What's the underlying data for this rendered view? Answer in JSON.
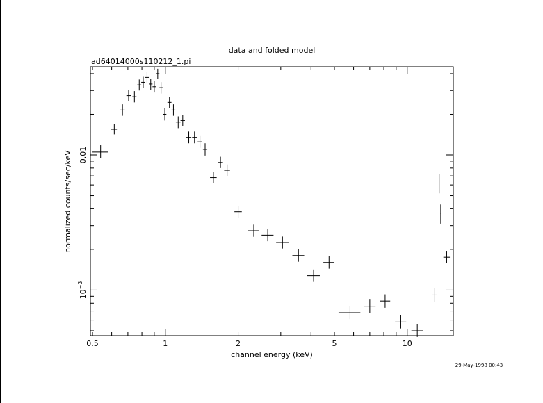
{
  "header": {
    "title": "data and folded model",
    "file_label": "ad64014000s110212_1.pi",
    "timestamp": "29-May-1998 00:43"
  },
  "chart_data": {
    "type": "scatter",
    "title": "data and folded model",
    "subtitle": "ad64014000s110212_1.pi",
    "xlabel": "channel energy (keV)",
    "ylabel": "normalized counts/sec/keV",
    "xscale": "log",
    "yscale": "log",
    "xlim": [
      0.49,
      15.5
    ],
    "ylim": [
      0.00046,
      0.045
    ],
    "x_ticks": [
      {
        "value": 0.5,
        "label": "0.5"
      },
      {
        "value": 1,
        "label": "1"
      },
      {
        "value": 2,
        "label": "2"
      },
      {
        "value": 5,
        "label": "5"
      },
      {
        "value": 10,
        "label": "10"
      }
    ],
    "y_ticks": [
      {
        "value": 0.001,
        "base": "10",
        "exp": "−3"
      },
      {
        "value": 0.01,
        "label": "0.01"
      }
    ],
    "grid": false,
    "legend": "none",
    "series": [
      {
        "points": [
          {
            "x": 0.54,
            "xlo": 0.5,
            "xhi": 0.58,
            "y": 0.0105,
            "ylo": 0.0095,
            "yhi": 0.0118
          },
          {
            "x": 0.615,
            "xlo": 0.595,
            "xhi": 0.635,
            "y": 0.0155,
            "ylo": 0.0142,
            "yhi": 0.017
          },
          {
            "x": 0.665,
            "xlo": 0.65,
            "xhi": 0.68,
            "y": 0.0215,
            "ylo": 0.0195,
            "yhi": 0.0237
          },
          {
            "x": 0.705,
            "xlo": 0.69,
            "xhi": 0.72,
            "y": 0.0275,
            "ylo": 0.025,
            "yhi": 0.0302
          },
          {
            "x": 0.745,
            "xlo": 0.73,
            "xhi": 0.76,
            "y": 0.027,
            "ylo": 0.0245,
            "yhi": 0.0297
          },
          {
            "x": 0.78,
            "xlo": 0.765,
            "xhi": 0.795,
            "y": 0.033,
            "ylo": 0.03,
            "yhi": 0.0362
          },
          {
            "x": 0.81,
            "xlo": 0.795,
            "xhi": 0.825,
            "y": 0.0345,
            "ylo": 0.0313,
            "yhi": 0.0379
          },
          {
            "x": 0.84,
            "xlo": 0.825,
            "xhi": 0.855,
            "y": 0.0375,
            "ylo": 0.0341,
            "yhi": 0.0411
          },
          {
            "x": 0.87,
            "xlo": 0.855,
            "xhi": 0.885,
            "y": 0.0335,
            "ylo": 0.0304,
            "yhi": 0.0368
          },
          {
            "x": 0.9,
            "xlo": 0.885,
            "xhi": 0.915,
            "y": 0.032,
            "ylo": 0.029,
            "yhi": 0.0352
          },
          {
            "x": 0.93,
            "xlo": 0.915,
            "xhi": 0.945,
            "y": 0.04,
            "ylo": 0.0365,
            "yhi": 0.0435
          },
          {
            "x": 0.96,
            "xlo": 0.945,
            "xhi": 0.975,
            "y": 0.0315,
            "ylo": 0.0285,
            "yhi": 0.0346
          },
          {
            "x": 0.995,
            "xlo": 0.98,
            "xhi": 1.01,
            "y": 0.02,
            "ylo": 0.018,
            "yhi": 0.0222
          },
          {
            "x": 1.04,
            "xlo": 1.02,
            "xhi": 1.06,
            "y": 0.0245,
            "ylo": 0.0222,
            "yhi": 0.027
          },
          {
            "x": 1.08,
            "xlo": 1.06,
            "xhi": 1.1,
            "y": 0.0215,
            "ylo": 0.0195,
            "yhi": 0.0237
          },
          {
            "x": 1.13,
            "xlo": 1.105,
            "xhi": 1.155,
            "y": 0.0175,
            "ylo": 0.0158,
            "yhi": 0.0193
          },
          {
            "x": 1.18,
            "xlo": 1.155,
            "xhi": 1.205,
            "y": 0.018,
            "ylo": 0.0163,
            "yhi": 0.0198
          },
          {
            "x": 1.25,
            "xlo": 1.22,
            "xhi": 1.28,
            "y": 0.0135,
            "ylo": 0.0122,
            "yhi": 0.0149
          },
          {
            "x": 1.32,
            "xlo": 1.29,
            "xhi": 1.35,
            "y": 0.0135,
            "ylo": 0.0122,
            "yhi": 0.0149
          },
          {
            "x": 1.39,
            "xlo": 1.36,
            "xhi": 1.42,
            "y": 0.0125,
            "ylo": 0.0113,
            "yhi": 0.0138
          },
          {
            "x": 1.46,
            "xlo": 1.43,
            "xhi": 1.49,
            "y": 0.011,
            "ylo": 0.0099,
            "yhi": 0.0122
          },
          {
            "x": 1.58,
            "xlo": 1.53,
            "xhi": 1.63,
            "y": 0.0068,
            "ylo": 0.0062,
            "yhi": 0.0075
          },
          {
            "x": 1.69,
            "xlo": 1.65,
            "xhi": 1.73,
            "y": 0.0088,
            "ylo": 0.008,
            "yhi": 0.0097
          },
          {
            "x": 1.8,
            "xlo": 1.75,
            "xhi": 1.85,
            "y": 0.0077,
            "ylo": 0.007,
            "yhi": 0.0085
          },
          {
            "x": 2.0,
            "xlo": 1.93,
            "xhi": 2.07,
            "y": 0.0038,
            "ylo": 0.0034,
            "yhi": 0.0042
          },
          {
            "x": 2.32,
            "xlo": 2.2,
            "xhi": 2.44,
            "y": 0.00275,
            "ylo": 0.00248,
            "yhi": 0.00305
          },
          {
            "x": 2.65,
            "xlo": 2.5,
            "xhi": 2.8,
            "y": 0.00255,
            "ylo": 0.0023,
            "yhi": 0.00283
          },
          {
            "x": 3.05,
            "xlo": 2.87,
            "xhi": 3.23,
            "y": 0.00225,
            "ylo": 0.00203,
            "yhi": 0.00249
          },
          {
            "x": 3.55,
            "xlo": 3.35,
            "xhi": 3.75,
            "y": 0.0018,
            "ylo": 0.00162,
            "yhi": 0.002
          },
          {
            "x": 4.1,
            "xlo": 3.85,
            "xhi": 4.35,
            "y": 0.00128,
            "ylo": 0.00115,
            "yhi": 0.00142
          },
          {
            "x": 4.75,
            "xlo": 4.5,
            "xhi": 5.0,
            "y": 0.0016,
            "ylo": 0.00144,
            "yhi": 0.00178
          },
          {
            "x": 5.8,
            "xlo": 5.2,
            "xhi": 6.4,
            "y": 0.00068,
            "ylo": 0.00061,
            "yhi": 0.00076
          },
          {
            "x": 7.0,
            "xlo": 6.6,
            "xhi": 7.4,
            "y": 0.00076,
            "ylo": 0.00068,
            "yhi": 0.00085
          },
          {
            "x": 8.1,
            "xlo": 7.7,
            "xhi": 8.5,
            "y": 0.00083,
            "ylo": 0.00074,
            "yhi": 0.00093
          },
          {
            "x": 9.4,
            "xlo": 8.9,
            "xhi": 9.9,
            "y": 0.00058,
            "ylo": 0.00052,
            "yhi": 0.00065
          },
          {
            "x": 11.0,
            "xlo": 10.4,
            "xhi": 11.6,
            "y": 0.0005,
            "ylo": 0.00045,
            "yhi": 0.00056
          },
          {
            "x": 13.0,
            "xlo": 12.7,
            "xhi": 13.3,
            "y": 0.00092,
            "ylo": 0.00082,
            "yhi": 0.00103
          },
          {
            "x": 13.55,
            "xlo": 13.52,
            "xhi": 13.58,
            "y": 0.0062,
            "ylo": 0.0052,
            "yhi": 0.0072
          },
          {
            "x": 13.75,
            "xlo": 13.7,
            "xhi": 13.8,
            "y": 0.0037,
            "ylo": 0.0031,
            "yhi": 0.0043
          },
          {
            "x": 14.55,
            "xlo": 14.1,
            "xhi": 15.0,
            "y": 0.00175,
            "ylo": 0.00158,
            "yhi": 0.00195
          }
        ]
      }
    ]
  }
}
